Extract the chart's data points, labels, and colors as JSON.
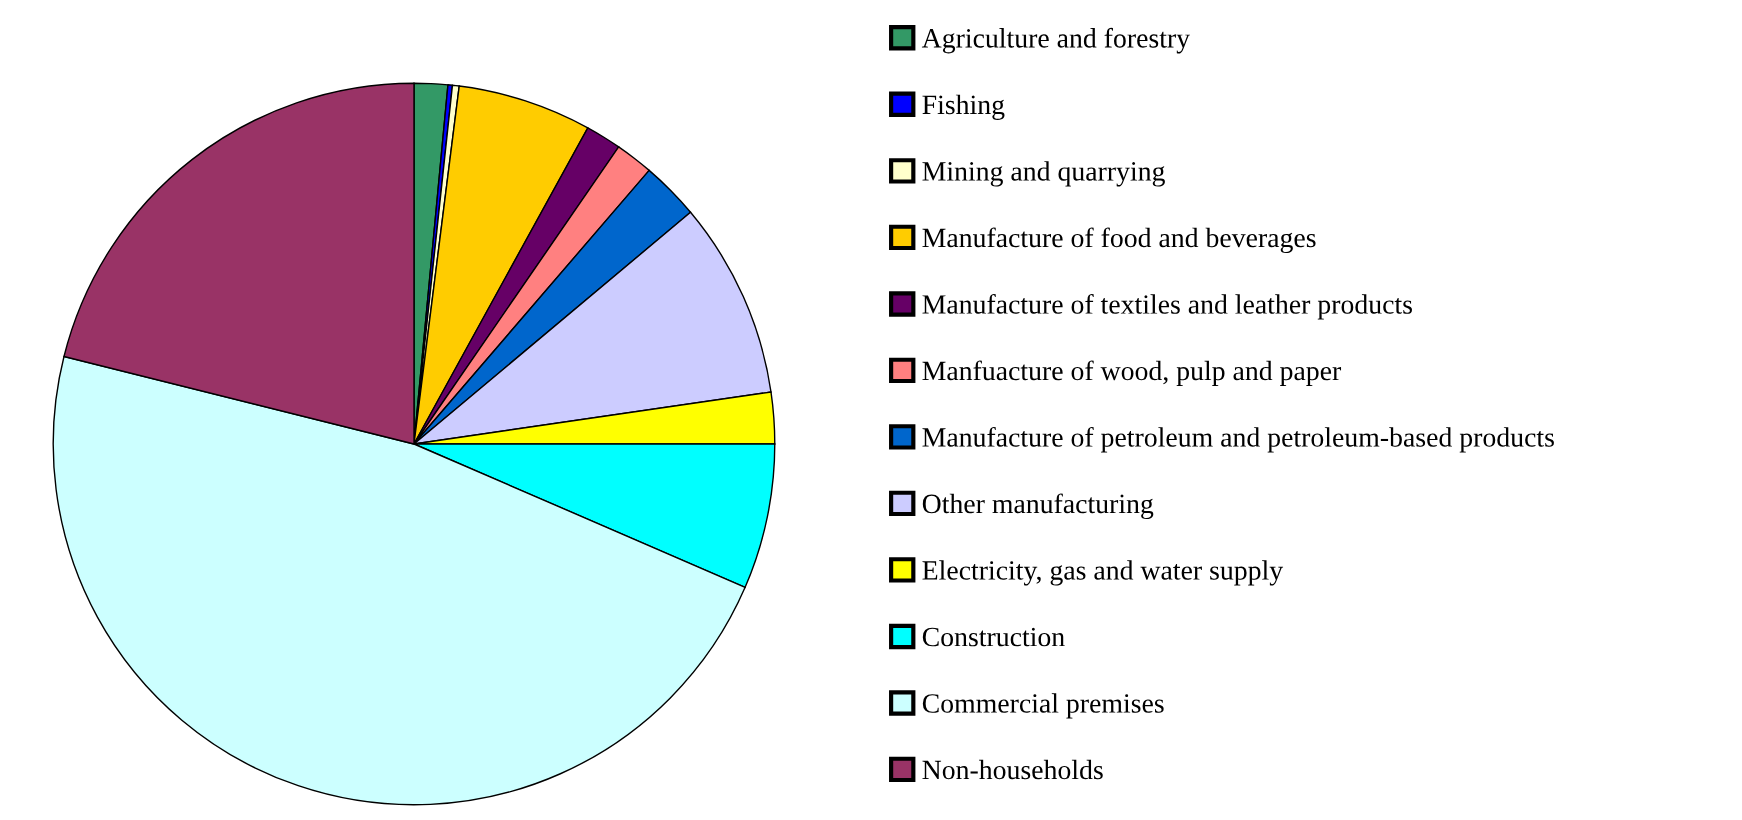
{
  "chart_data": {
    "type": "pie",
    "categories": [
      "Agriculture and forestry",
      "Fishing",
      "Mining and quarrying",
      "Manufacture of food and beverages",
      "Manufacture of textiles and leather products",
      "Manfuacture of wood, pulp and paper",
      "Manufacture of petroleum and petroleum-based products",
      "Other manufacturing",
      "Electricity, gas and water supply",
      "Construction",
      "Commercial premises",
      "Non-households"
    ],
    "values": [
      1.5,
      0.2,
      0.3,
      6.0,
      1.6,
      1.7,
      2.6,
      8.8,
      2.3,
      6.5,
      47.4,
      21.1
    ],
    "colors": [
      "#339966",
      "#0000ff",
      "#ffffcc",
      "#ffcc00",
      "#660066",
      "#ff8080",
      "#0066cc",
      "#ccccff",
      "#ffff00",
      "#00ffff",
      "#ccffff",
      "#993366"
    ],
    "legend": "right"
  }
}
